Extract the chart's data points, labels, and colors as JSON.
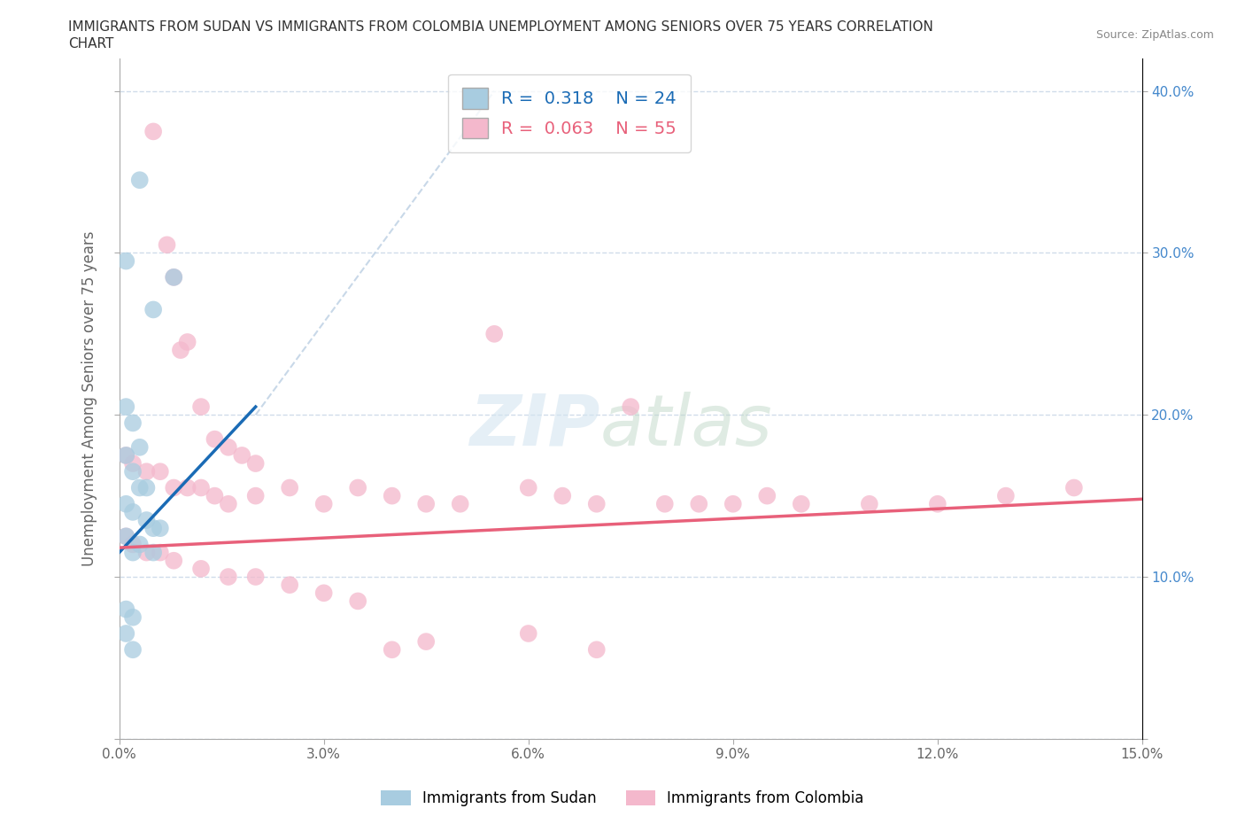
{
  "title_line1": "IMMIGRANTS FROM SUDAN VS IMMIGRANTS FROM COLOMBIA UNEMPLOYMENT AMONG SENIORS OVER 75 YEARS CORRELATION",
  "title_line2": "CHART",
  "source_text": "Source: ZipAtlas.com",
  "ylabel": "Unemployment Among Seniors over 75 years",
  "xlim": [
    0.0,
    0.15
  ],
  "ylim": [
    0.0,
    0.42
  ],
  "xticks": [
    0.0,
    0.03,
    0.06,
    0.09,
    0.12,
    0.15
  ],
  "yticks": [
    0.0,
    0.1,
    0.2,
    0.3,
    0.4
  ],
  "xtick_labels": [
    "0.0%",
    "3.0%",
    "6.0%",
    "9.0%",
    "12.0%",
    "15.0%"
  ],
  "ytick_labels_right": [
    "",
    "10.0%",
    "20.0%",
    "30.0%",
    "40.0%"
  ],
  "sudan_color": "#a8cce0",
  "colombia_color": "#f4b8cc",
  "sudan_line_color": "#1a6bb5",
  "colombia_line_color": "#e8607a",
  "diagonal_color": "#c8d8e8",
  "sudan_R": 0.318,
  "sudan_N": 24,
  "colombia_R": 0.063,
  "colombia_N": 55,
  "sudan_points": [
    [
      0.003,
      0.345
    ],
    [
      0.008,
      0.285
    ],
    [
      0.001,
      0.295
    ],
    [
      0.005,
      0.265
    ],
    [
      0.001,
      0.205
    ],
    [
      0.002,
      0.195
    ],
    [
      0.003,
      0.18
    ],
    [
      0.001,
      0.175
    ],
    [
      0.002,
      0.165
    ],
    [
      0.003,
      0.155
    ],
    [
      0.004,
      0.155
    ],
    [
      0.001,
      0.145
    ],
    [
      0.002,
      0.14
    ],
    [
      0.004,
      0.135
    ],
    [
      0.005,
      0.13
    ],
    [
      0.006,
      0.13
    ],
    [
      0.001,
      0.125
    ],
    [
      0.003,
      0.12
    ],
    [
      0.002,
      0.115
    ],
    [
      0.005,
      0.115
    ],
    [
      0.001,
      0.08
    ],
    [
      0.002,
      0.075
    ],
    [
      0.001,
      0.065
    ],
    [
      0.002,
      0.055
    ]
  ],
  "colombia_points": [
    [
      0.005,
      0.375
    ],
    [
      0.007,
      0.305
    ],
    [
      0.008,
      0.285
    ],
    [
      0.009,
      0.24
    ],
    [
      0.01,
      0.245
    ],
    [
      0.012,
      0.205
    ],
    [
      0.014,
      0.185
    ],
    [
      0.016,
      0.18
    ],
    [
      0.018,
      0.175
    ],
    [
      0.02,
      0.17
    ],
    [
      0.055,
      0.25
    ],
    [
      0.075,
      0.205
    ],
    [
      0.001,
      0.175
    ],
    [
      0.002,
      0.17
    ],
    [
      0.004,
      0.165
    ],
    [
      0.006,
      0.165
    ],
    [
      0.008,
      0.155
    ],
    [
      0.01,
      0.155
    ],
    [
      0.012,
      0.155
    ],
    [
      0.014,
      0.15
    ],
    [
      0.016,
      0.145
    ],
    [
      0.02,
      0.15
    ],
    [
      0.025,
      0.155
    ],
    [
      0.03,
      0.145
    ],
    [
      0.035,
      0.155
    ],
    [
      0.04,
      0.15
    ],
    [
      0.045,
      0.145
    ],
    [
      0.05,
      0.145
    ],
    [
      0.06,
      0.155
    ],
    [
      0.065,
      0.15
    ],
    [
      0.07,
      0.145
    ],
    [
      0.08,
      0.145
    ],
    [
      0.085,
      0.145
    ],
    [
      0.09,
      0.145
    ],
    [
      0.095,
      0.15
    ],
    [
      0.1,
      0.145
    ],
    [
      0.11,
      0.145
    ],
    [
      0.12,
      0.145
    ],
    [
      0.13,
      0.15
    ],
    [
      0.14,
      0.155
    ],
    [
      0.001,
      0.125
    ],
    [
      0.002,
      0.12
    ],
    [
      0.004,
      0.115
    ],
    [
      0.006,
      0.115
    ],
    [
      0.008,
      0.11
    ],
    [
      0.012,
      0.105
    ],
    [
      0.016,
      0.1
    ],
    [
      0.02,
      0.1
    ],
    [
      0.025,
      0.095
    ],
    [
      0.03,
      0.09
    ],
    [
      0.035,
      0.085
    ],
    [
      0.04,
      0.055
    ],
    [
      0.045,
      0.06
    ],
    [
      0.06,
      0.065
    ],
    [
      0.07,
      0.055
    ]
  ],
  "legend_sudan_label": "Immigrants from Sudan",
  "legend_colombia_label": "Immigrants from Colombia",
  "watermark_zip": "ZIP",
  "watermark_atlas": "atlas",
  "background_color": "#ffffff",
  "grid_color": "#d0dcea"
}
